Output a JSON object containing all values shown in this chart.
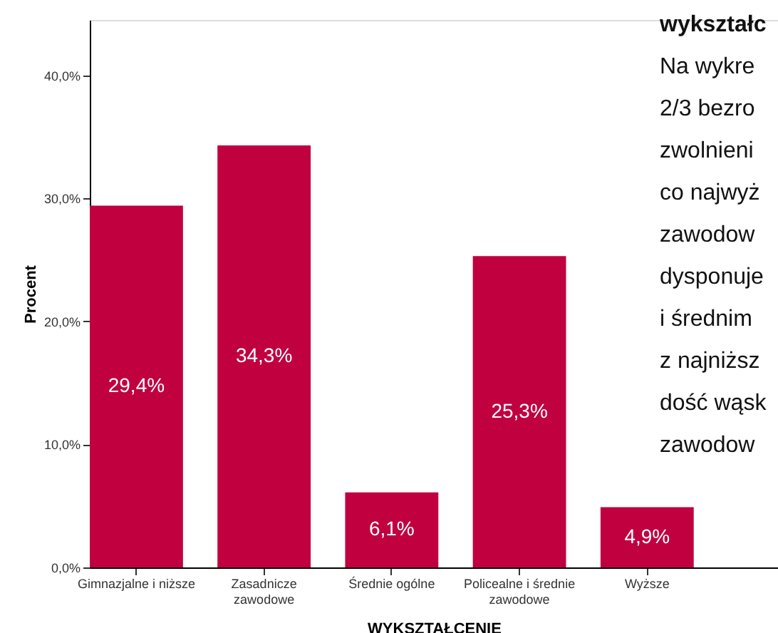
{
  "chart_data": {
    "type": "bar",
    "xlabel": "WYKSZTAŁCENIE",
    "ylabel": "Procent",
    "categories": [
      "Gimnazjalne i niższe",
      "Zasadnicze\nzawodowe",
      "Średnie ogólne",
      "Policealne i średnie\nzawodowe",
      "Wyższe"
    ],
    "values": [
      29.4,
      34.3,
      6.1,
      25.3,
      4.9
    ],
    "color": "#c0003f",
    "value_labels": [
      "29,4%",
      "34,3%",
      "6,1%",
      "25,3%",
      "4,9%"
    ],
    "ylim": [
      0,
      44.5
    ],
    "yticks": [
      {
        "value": 0,
        "label": "0,0%"
      },
      {
        "value": 10,
        "label": "10,0%"
      },
      {
        "value": 20,
        "label": "20,0%"
      },
      {
        "value": 30,
        "label": "30,0%"
      },
      {
        "value": 40,
        "label": "40,0%"
      }
    ],
    "grid": false,
    "annotations": [
      "wykształc",
      "Na wykre",
      "2/3 bezro",
      "zwolnieni",
      "co najwyż",
      "zawodow",
      "dysponuje",
      "i średnim",
      "z najniższ",
      "dość wąsk",
      "zawodow"
    ]
  }
}
